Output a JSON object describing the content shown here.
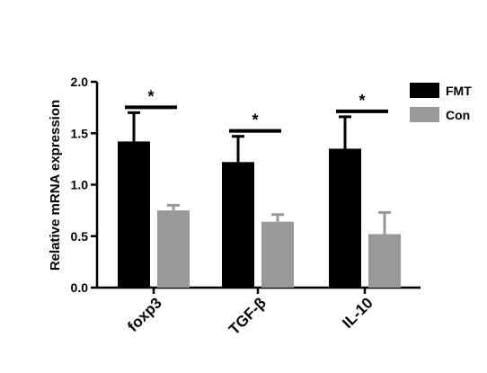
{
  "chart_data": {
    "type": "bar",
    "title": "",
    "xlabel": "",
    "ylabel": "Relative mRNA expression",
    "ylim": [
      0,
      2.0
    ],
    "yticks": [
      "0.0",
      "0.5",
      "1.0",
      "1.5",
      "2.0"
    ],
    "ytick_values": [
      0,
      0.5,
      1.0,
      1.5,
      2.0
    ],
    "categories": [
      "foxp3",
      "TGF-β",
      "IL-10"
    ],
    "series": [
      {
        "name": "FMT",
        "color": "#000000",
        "values": [
          1.42,
          1.22,
          1.35
        ],
        "error": [
          0.28,
          0.25,
          0.31
        ]
      },
      {
        "name": "Con",
        "color": "#999999",
        "values": [
          0.75,
          0.64,
          0.52
        ],
        "error": [
          0.05,
          0.07,
          0.21
        ]
      }
    ],
    "significance": [
      {
        "category": "foxp3",
        "label": "*"
      },
      {
        "category": "TGF-β",
        "label": "*"
      },
      {
        "category": "IL-10",
        "label": "*"
      }
    ],
    "legend_position": "top-right",
    "grid": false
  }
}
